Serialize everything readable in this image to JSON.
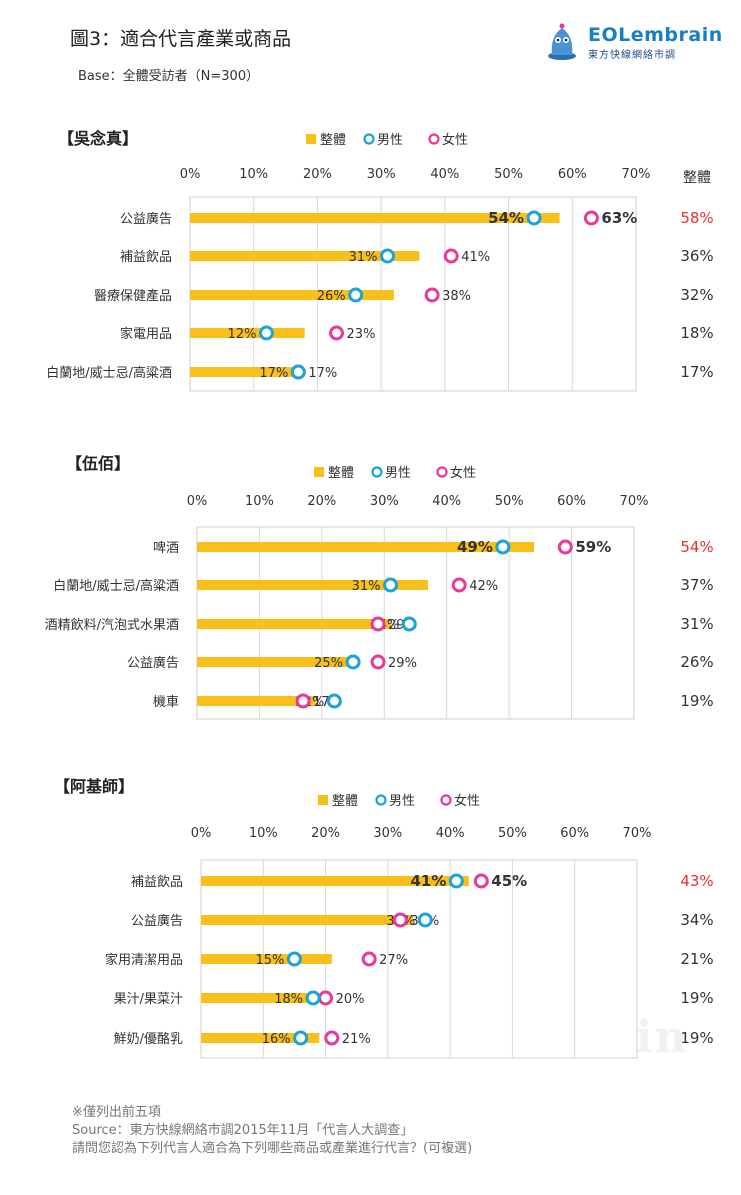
{
  "header": {
    "title": "圖3：適合代言產業或商品",
    "base": "Base：全體受訪者（N=300）",
    "logo_main": "EOLembrain",
    "logo_sub": "東方快線網絡市調"
  },
  "legend": {
    "total": "整體",
    "male": "男性",
    "female": "女性"
  },
  "total_header": "整體",
  "colors": {
    "total": "#f9bf1a",
    "male": "#1aa3dc",
    "female": "#e73a9a",
    "highlight": "#e8312f"
  },
  "chart_data": [
    {
      "type": "bar",
      "title": "【吳念真】",
      "ticks": [
        "0%",
        "10%",
        "20%",
        "30%",
        "40%",
        "50%",
        "60%",
        "70%"
      ],
      "xlim": [
        0,
        70
      ],
      "categories": [
        "公益廣告",
        "補益飲品",
        "醫療保健產品",
        "家電用品",
        "白蘭地/威士忌/高粱酒"
      ],
      "total": [
        58,
        36,
        32,
        18,
        17
      ],
      "male": [
        54,
        31,
        26,
        12,
        17
      ],
      "female": [
        63,
        41,
        38,
        23,
        17
      ],
      "total_labels": [
        "58%",
        "36%",
        "32%",
        "18%",
        "17%"
      ],
      "male_labels": [
        "54%",
        "31%",
        "26%",
        "12%",
        "17%"
      ],
      "female_labels": [
        "63%",
        "41%",
        "38%",
        "23%",
        "17%"
      ]
    },
    {
      "type": "bar",
      "title": "【伍佰】",
      "ticks": [
        "0%",
        "10%",
        "20%",
        "30%",
        "40%",
        "50%",
        "60%",
        "70%"
      ],
      "xlim": [
        0,
        70
      ],
      "categories": [
        "啤酒",
        "白蘭地/威士忌/高粱酒",
        "酒精飲料/汽泡式水果酒",
        "公益廣告",
        "機車"
      ],
      "total": [
        54,
        37,
        31,
        26,
        19
      ],
      "male": [
        49,
        31,
        34,
        25,
        22
      ],
      "female": [
        59,
        42,
        29,
        29,
        17
      ],
      "total_labels": [
        "54%",
        "37%",
        "31%",
        "26%",
        "19%"
      ],
      "male_labels": [
        "49%",
        "31%",
        "34%",
        "25%",
        "22%"
      ],
      "female_labels": [
        "59%",
        "42%",
        "29%",
        "29%",
        "17%"
      ]
    },
    {
      "type": "bar",
      "title": "【阿基師】",
      "ticks": [
        "0%",
        "10%",
        "20%",
        "30%",
        "40%",
        "50%",
        "60%",
        "70%"
      ],
      "xlim": [
        0,
        70
      ],
      "categories": [
        "補益飲品",
        "公益廣告",
        "家用清潔用品",
        "果汁/果菜汁",
        "鮮奶/優酪乳"
      ],
      "total": [
        43,
        34,
        21,
        19,
        19
      ],
      "male": [
        41,
        36,
        15,
        18,
        16
      ],
      "female": [
        45,
        32,
        27,
        20,
        21
      ],
      "total_labels": [
        "43%",
        "34%",
        "21%",
        "19%",
        "19%"
      ],
      "male_labels": [
        "41%",
        "36%",
        "15%",
        "18%",
        "16%"
      ],
      "female_labels": [
        "45%",
        "32%",
        "27%",
        "20%",
        "21%"
      ]
    }
  ],
  "notes": {
    "line1": "※僅列出前五項",
    "line2": "Source：東方快線網絡市調2015年11月「代言人大調查」",
    "line3": "請問您認為下列代言人適合為下列哪些商品或產業進行代言？(可複選)"
  },
  "watermark": "EOLembrain"
}
